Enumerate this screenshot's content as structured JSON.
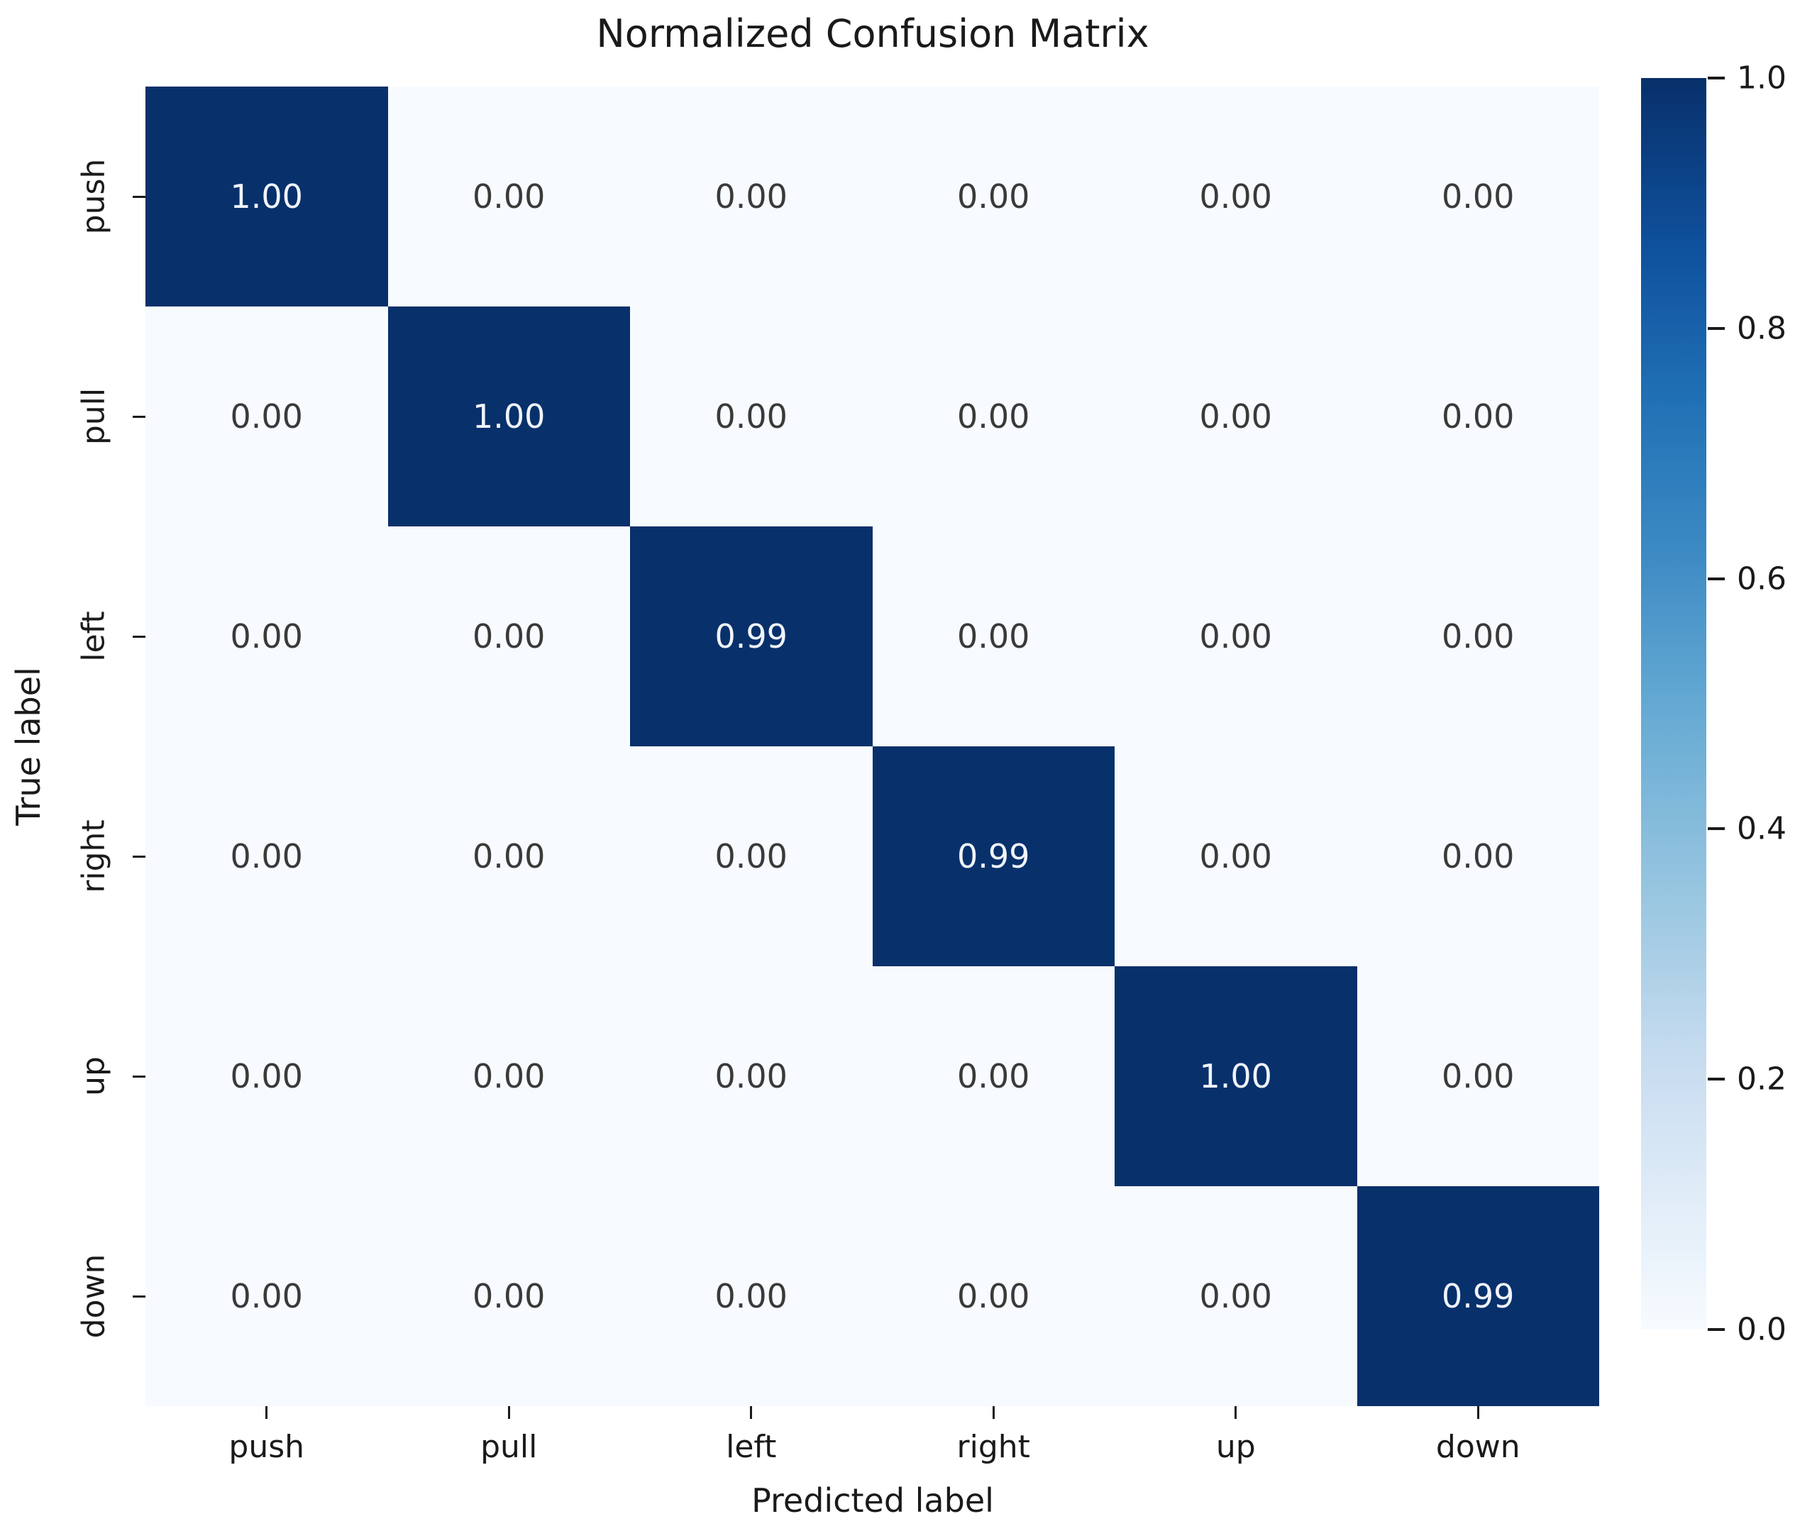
{
  "chart_data": {
    "type": "heatmap",
    "title": "Normalized Confusion Matrix",
    "xlabel": "Predicted label",
    "ylabel": "True label",
    "categories": [
      "push",
      "pull",
      "left",
      "right",
      "up",
      "down"
    ],
    "matrix": [
      [
        1.0,
        0.0,
        0.0,
        0.0,
        0.0,
        0.0
      ],
      [
        0.0,
        1.0,
        0.0,
        0.0,
        0.0,
        0.0
      ],
      [
        0.0,
        0.0,
        0.99,
        0.0,
        0.0,
        0.0
      ],
      [
        0.0,
        0.0,
        0.0,
        0.99,
        0.0,
        0.0
      ],
      [
        0.0,
        0.0,
        0.0,
        0.0,
        1.0,
        0.0
      ],
      [
        0.0,
        0.0,
        0.0,
        0.0,
        0.0,
        0.99
      ]
    ],
    "value_decimals": 2,
    "vmin": 0.0,
    "vmax": 1.0,
    "colormap": "Blues",
    "colorbar_ticks": [
      "1.0",
      "0.8",
      "0.6",
      "0.4",
      "0.2",
      "0.0"
    ],
    "legend_position": "right",
    "grid": false,
    "colors": {
      "cell_high": "#08306b",
      "cell_low": "#f7fbff",
      "annot_on_dark": "#f0f4fa",
      "annot_on_light": "#3a3a3a",
      "axis_text": "#1a1a1a"
    }
  }
}
